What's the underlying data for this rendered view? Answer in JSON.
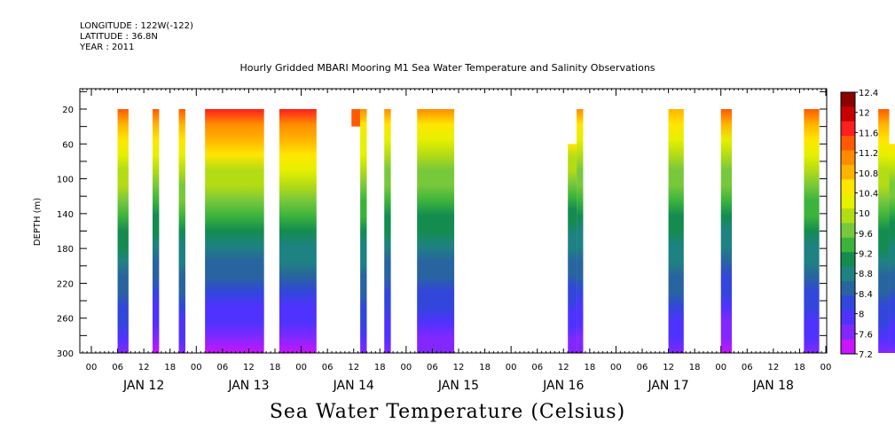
{
  "header": {
    "longitude": "LONGITUDE : 122W(-122)",
    "latitude": "LATITUDE : 36.8N",
    "year": "YEAR : 2011"
  },
  "chart_data": {
    "type": "heatmap",
    "title": "Hourly Gridded MBARI Mooring M1 Sea Water Temperature and Salinity Observations",
    "subtitle": "Sea Water Temperature (Celsius)",
    "ylabel": "DEPTH (m)",
    "xlabel": "",
    "ylim": [
      300,
      0
    ],
    "y_ticks": [
      20,
      60,
      100,
      140,
      180,
      220,
      260,
      300
    ],
    "x_hour_ticks": [
      "00",
      "06",
      "12",
      "18",
      "00",
      "06",
      "12",
      "18",
      "00",
      "06",
      "12",
      "18",
      "00",
      "06",
      "12",
      "18",
      "00",
      "06",
      "12",
      "18",
      "00",
      "06",
      "12",
      "18",
      "00",
      "06",
      "12",
      "18",
      "00"
    ],
    "day_labels": [
      "JAN 12",
      "JAN 13",
      "JAN 14",
      "JAN 15",
      "JAN 16",
      "JAN 17",
      "JAN 18"
    ],
    "colorbar_labels": [
      "12.4",
      "12",
      "11.6",
      "11.2",
      "10.8",
      "10.4",
      "10",
      "9.6",
      "9.2",
      "8.8",
      "8.4",
      "8",
      "7.6",
      "7.2"
    ],
    "colorbar_colors": [
      "#8c0000",
      "#c80000",
      "#ff1e1e",
      "#ff5a00",
      "#ff8c00",
      "#ffb400",
      "#ffe600",
      "#e6f000",
      "#b4dc14",
      "#78c83c",
      "#3cb43c",
      "#148c50",
      "#1e8282",
      "#2864a0",
      "#3246dc",
      "#5032ff",
      "#8228ff",
      "#c814ff"
    ],
    "segments": [
      {
        "start_hour": 6,
        "end_hour": 8.5,
        "top_depth": 20,
        "bottom_depth": 300,
        "surface_temp": 11.6,
        "bottom_temp": 7.8
      },
      {
        "start_hour": 14,
        "end_hour": 15.5,
        "top_depth": 20,
        "bottom_depth": 300,
        "surface_temp": 11.5,
        "bottom_temp": 7.5
      },
      {
        "start_hour": 20,
        "end_hour": 21.5,
        "top_depth": 20,
        "bottom_depth": 300,
        "surface_temp": 11.6,
        "bottom_temp": 7.7
      },
      {
        "start_hour": 26,
        "end_hour": 39.5,
        "top_depth": 20,
        "bottom_depth": 300,
        "surface_temp": 11.9,
        "bottom_temp": 7.4
      },
      {
        "start_hour": 43,
        "end_hour": 51.5,
        "top_depth": 20,
        "bottom_depth": 300,
        "surface_temp": 11.9,
        "bottom_temp": 7.5
      },
      {
        "start_hour": 59.5,
        "end_hour": 61.5,
        "top_depth": 20,
        "bottom_depth": 40,
        "surface_temp": 11.6,
        "bottom_temp": 11.4
      },
      {
        "start_hour": 61.5,
        "end_hour": 63,
        "top_depth": 20,
        "bottom_depth": 300,
        "surface_temp": 11.3,
        "bottom_temp": 7.8
      },
      {
        "start_hour": 67,
        "end_hour": 68.5,
        "top_depth": 20,
        "bottom_depth": 300,
        "surface_temp": 11.2,
        "bottom_temp": 7.7
      },
      {
        "start_hour": 74.5,
        "end_hour": 83,
        "top_depth": 20,
        "bottom_depth": 300,
        "surface_temp": 11.3,
        "bottom_temp": 7.6
      },
      {
        "start_hour": 109,
        "end_hour": 111,
        "top_depth": 60,
        "bottom_depth": 300,
        "surface_temp": 10.6,
        "bottom_temp": 7.6
      },
      {
        "start_hour": 111,
        "end_hour": 112.5,
        "top_depth": 20,
        "bottom_depth": 300,
        "surface_temp": 11.2,
        "bottom_temp": 7.6
      },
      {
        "start_hour": 132,
        "end_hour": 135.5,
        "top_depth": 20,
        "bottom_depth": 300,
        "surface_temp": 11.1,
        "bottom_temp": 7.8
      },
      {
        "start_hour": 144,
        "end_hour": 146.5,
        "top_depth": 20,
        "bottom_depth": 300,
        "surface_temp": 11.4,
        "bottom_temp": 7.4
      },
      {
        "start_hour": 163,
        "end_hour": 166.5,
        "top_depth": 20,
        "bottom_depth": 300,
        "surface_temp": 11.5,
        "bottom_temp": 7.7
      },
      {
        "start_hour": 180,
        "end_hour": 182.5,
        "top_depth": 20,
        "bottom_depth": 300,
        "surface_temp": 11.6,
        "bottom_temp": 7.8
      },
      {
        "start_hour": 182.5,
        "end_hour": 184,
        "top_depth": 60,
        "bottom_depth": 300,
        "surface_temp": 10.7,
        "bottom_temp": 7.8
      }
    ]
  }
}
